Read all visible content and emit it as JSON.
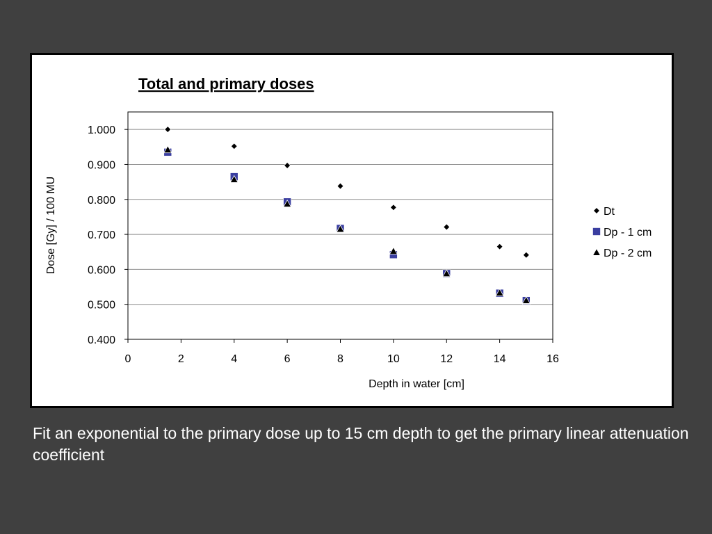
{
  "chart_data": {
    "type": "scatter",
    "title": "Total and primary doses",
    "xlabel": "Depth in water [cm]",
    "ylabel": "Dose [Gy] / 100 MU",
    "xlim": [
      0,
      16
    ],
    "ylim": [
      0.4,
      1.05
    ],
    "x_ticks": [
      "0",
      "2",
      "4",
      "6",
      "8",
      "10",
      "12",
      "14",
      "16"
    ],
    "y_ticks": [
      "0.400",
      "0.500",
      "0.600",
      "0.700",
      "0.800",
      "0.900",
      "1.000"
    ],
    "grid": "horizontal",
    "legend_position": "right",
    "series": [
      {
        "name": "Dt",
        "marker": "diamond",
        "color": "#000000",
        "x": [
          1.5,
          4,
          6,
          8,
          10,
          12,
          14,
          15
        ],
        "y": [
          1.0,
          0.952,
          0.897,
          0.838,
          0.777,
          0.721,
          0.665,
          0.641
        ]
      },
      {
        "name": "Dp - 1 cm",
        "marker": "square",
        "color": "#3a3ea0",
        "x": [
          1.5,
          4,
          6,
          8,
          10,
          12,
          14,
          15
        ],
        "y": [
          0.935,
          0.865,
          0.793,
          0.717,
          0.642,
          0.588,
          0.532,
          0.511
        ]
      },
      {
        "name": "Dp - 2 cm",
        "marker": "triangle",
        "color": "#000000",
        "x": [
          1.5,
          4,
          6,
          8,
          10,
          12,
          14,
          15
        ],
        "y": [
          0.942,
          0.857,
          0.787,
          0.715,
          0.652,
          0.588,
          0.533,
          0.511
        ]
      }
    ]
  },
  "caption": "Fit an exponential to the primary dose up to 15 cm depth to get the primary linear attenuation coefficient"
}
